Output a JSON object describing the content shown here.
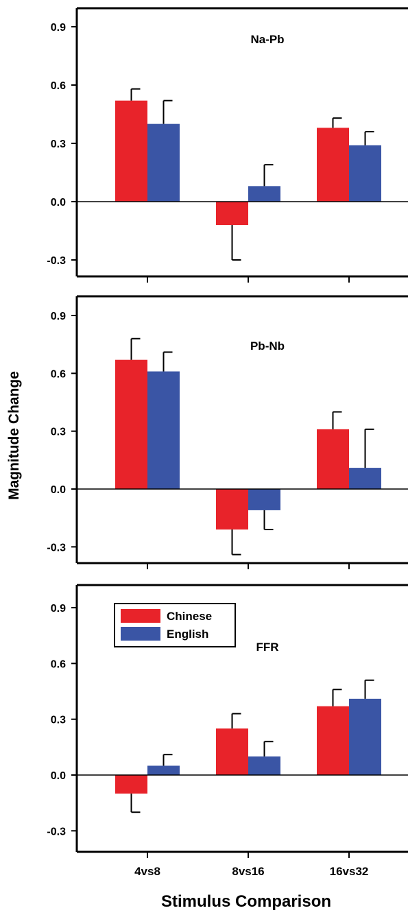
{
  "figure": {
    "ylabel": "Magnitude Change",
    "xlabel": "Stimulus Comparison",
    "categories": [
      "4vs8",
      "8vs16",
      "16vs32"
    ],
    "legend": [
      {
        "name": "Chinese",
        "color": "#e8232a"
      },
      {
        "name": "English",
        "color": "#3a55a5"
      }
    ]
  },
  "chart_data": [
    {
      "type": "bar",
      "title": "Na-Pb",
      "categories": [
        "4vs8",
        "8vs16",
        "16vs32"
      ],
      "ylim": [
        -0.35,
        1.0
      ],
      "yticks": [
        "0.9",
        "0.6",
        "0.3",
        "0.0",
        "-0.3"
      ],
      "series": [
        {
          "name": "Chinese",
          "color": "#e8232a",
          "values": [
            0.52,
            -0.12,
            0.38
          ],
          "errors": [
            0.06,
            0.18,
            0.05
          ]
        },
        {
          "name": "English",
          "color": "#3a55a5",
          "values": [
            0.4,
            0.08,
            0.29
          ],
          "errors": [
            0.12,
            0.11,
            0.07
          ]
        }
      ]
    },
    {
      "type": "bar",
      "title": "Pb-Nb",
      "categories": [
        "4vs8",
        "8vs16",
        "16vs32"
      ],
      "ylim": [
        -0.38,
        1.0
      ],
      "yticks": [
        "0.9",
        "0.6",
        "0.3",
        "0.0",
        "-0.3"
      ],
      "series": [
        {
          "name": "Chinese",
          "color": "#e8232a",
          "values": [
            0.67,
            -0.21,
            0.31
          ],
          "errors": [
            0.11,
            0.13,
            0.09
          ]
        },
        {
          "name": "English",
          "color": "#3a55a5",
          "values": [
            0.61,
            -0.11,
            0.11
          ],
          "errors": [
            0.1,
            0.1,
            0.2
          ]
        }
      ]
    },
    {
      "type": "bar",
      "title": "FFR",
      "categories": [
        "4vs8",
        "8vs16",
        "16vs32"
      ],
      "ylim": [
        -0.38,
        1.05
      ],
      "yticks": [
        "0.9",
        "0.6",
        "0.3",
        "0.0",
        "-0.3"
      ],
      "legend_position": "top-left",
      "series": [
        {
          "name": "Chinese",
          "color": "#e8232a",
          "values": [
            -0.1,
            0.25,
            0.37
          ],
          "errors": [
            0.1,
            0.08,
            0.09
          ]
        },
        {
          "name": "English",
          "color": "#3a55a5",
          "values": [
            0.05,
            0.1,
            0.41
          ],
          "errors": [
            0.06,
            0.08,
            0.1
          ]
        }
      ]
    }
  ]
}
